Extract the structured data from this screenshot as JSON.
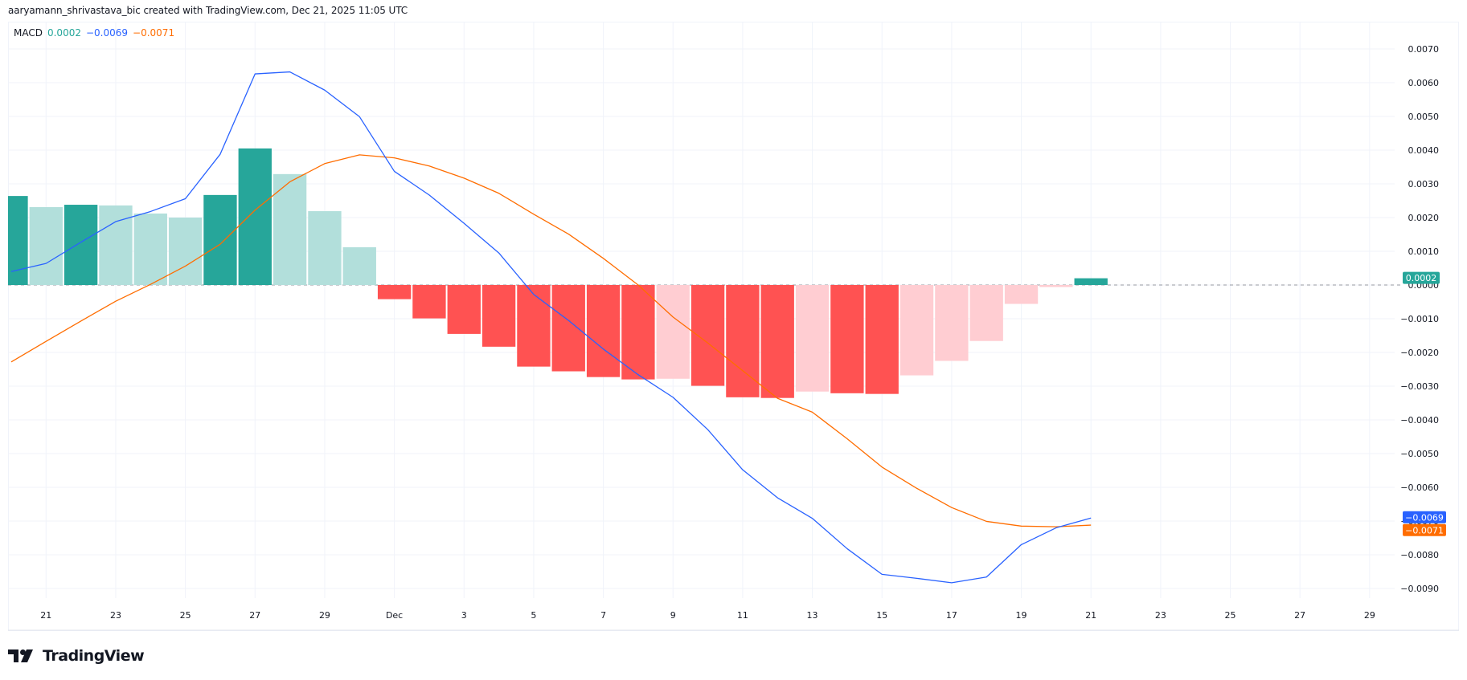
{
  "attribution": "aaryamann_shrivastava_bic created with TradingView.com, Dec 21, 2025 11:05 UTC",
  "legend": {
    "name": "MACD",
    "histogram_value": "0.0002",
    "macd_value": "−0.0069",
    "signal_value": "−0.0071"
  },
  "brand": {
    "name": "TradingView",
    "icon": "tradingview-logo-icon"
  },
  "colors": {
    "hist_pos_strong": "#26a69a",
    "hist_pos_weak": "#b2dfdb",
    "hist_neg_strong": "#ff5252",
    "hist_neg_weak": "#ffcdd2",
    "macd_line": "#2962ff",
    "signal_line": "#ff6d00",
    "grid": "#f0f3fa",
    "axis_text": "#131722"
  },
  "price_labels": [
    {
      "text": "0.0002",
      "value": 0.0002,
      "color": "#26a69a"
    },
    {
      "text": "−0.0069",
      "value": -0.0069,
      "color": "#2962ff"
    },
    {
      "text": "−0.0071",
      "value": -0.0071,
      "color": "#ff6d00"
    }
  ],
  "chart_data": {
    "type": "bar",
    "title": "MACD",
    "xlabel": "",
    "ylabel": "",
    "ylim": [
      -0.0095,
      0.0075
    ],
    "grid": true,
    "legend_position": "top-left",
    "y_ticks": [
      "0.0070",
      "0.0060",
      "0.0050",
      "0.0040",
      "0.0030",
      "0.0020",
      "0.0010",
      "0.0000",
      "−0.0010",
      "−0.0020",
      "−0.0030",
      "−0.0040",
      "−0.0050",
      "−0.0060",
      "−0.0070",
      "−0.0080",
      "−0.0090"
    ],
    "y_tick_values": [
      0.007,
      0.006,
      0.005,
      0.004,
      0.003,
      0.002,
      0.001,
      0,
      -0.001,
      -0.002,
      -0.003,
      -0.004,
      -0.005,
      -0.006,
      -0.007,
      -0.008,
      -0.009
    ],
    "x_ticks": [
      "21",
      "23",
      "25",
      "27",
      "29",
      "Dec",
      "3",
      "5",
      "7",
      "9",
      "11",
      "13",
      "15",
      "17",
      "19",
      "21",
      "23",
      "25",
      "27",
      "29"
    ],
    "x_tick_day_index": [
      0,
      2,
      4,
      6,
      8,
      10,
      12,
      14,
      16,
      18,
      20,
      22,
      24,
      26,
      28,
      30,
      32,
      34,
      36,
      38
    ],
    "categories": [
      "Nov 20",
      "Nov 21",
      "Nov 22",
      "Nov 23",
      "Nov 24",
      "Nov 25",
      "Nov 26",
      "Nov 27",
      "Nov 28",
      "Nov 29",
      "Nov 30",
      "Dec 1",
      "Dec 2",
      "Dec 3",
      "Dec 4",
      "Dec 5",
      "Dec 6",
      "Dec 7",
      "Dec 8",
      "Dec 9",
      "Dec 10",
      "Dec 11",
      "Dec 12",
      "Dec 13",
      "Dec 14",
      "Dec 15",
      "Dec 16",
      "Dec 17",
      "Dec 18",
      "Dec 19",
      "Dec 20",
      "Dec 21"
    ],
    "series": [
      {
        "name": "Histogram",
        "type": "bar",
        "values": [
          0.00264,
          0.00231,
          0.00238,
          0.00236,
          0.00212,
          0.002,
          0.00267,
          0.00405,
          0.00329,
          0.00219,
          0.00112,
          -0.00042,
          -0.00099,
          -0.00145,
          -0.00183,
          -0.00242,
          -0.00256,
          -0.00273,
          -0.0028,
          -0.00278,
          -0.00299,
          -0.00333,
          -0.00335,
          -0.00316,
          -0.00321,
          -0.00323,
          -0.00268,
          -0.00225,
          -0.00166,
          -0.00056,
          -6e-05,
          0.0002
        ]
      },
      {
        "name": "MACD",
        "type": "line",
        "color": "#2962ff",
        "values": [
          0.0004,
          0.00064,
          0.00127,
          0.00188,
          0.00218,
          0.00256,
          0.00388,
          0.00626,
          0.00632,
          0.00578,
          0.00499,
          0.00337,
          0.00267,
          0.00183,
          0.00095,
          -0.00028,
          -0.00105,
          -0.0019,
          -0.00266,
          -0.00333,
          -0.00429,
          -0.00548,
          -0.00631,
          -0.00692,
          -0.00782,
          -0.00858,
          -0.0087,
          -0.00883,
          -0.00866,
          -0.0077,
          -0.0072,
          -0.00691
        ]
      },
      {
        "name": "Signal",
        "type": "line",
        "color": "#ff6d00",
        "values": [
          -0.00228,
          -0.00167,
          -0.00107,
          -0.00048,
          2e-05,
          0.00056,
          0.00121,
          0.00222,
          0.00306,
          0.0036,
          0.00386,
          0.00377,
          0.00353,
          0.00317,
          0.00272,
          0.0021,
          0.00151,
          0.00079,
          0.0,
          -0.00095,
          -0.00172,
          -0.00254,
          -0.00336,
          -0.00377,
          -0.00456,
          -0.0054,
          -0.00603,
          -0.0066,
          -0.00701,
          -0.00715,
          -0.00717,
          -0.00712
        ]
      }
    ]
  }
}
